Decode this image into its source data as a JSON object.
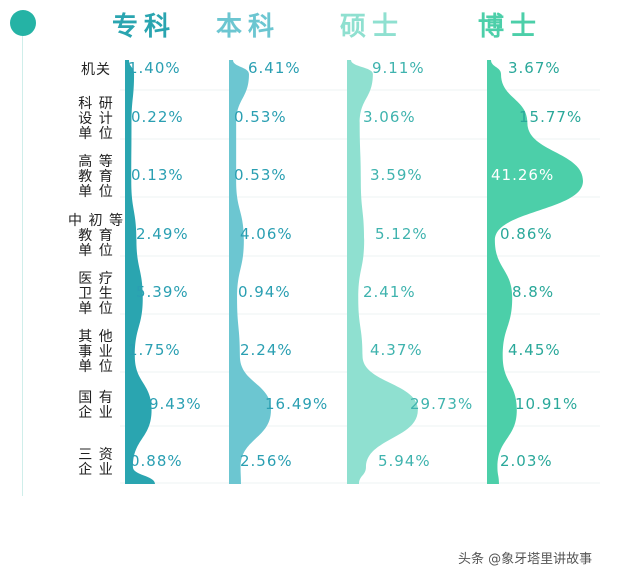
{
  "chart_data": {
    "type": "area",
    "title": "",
    "categories": [
      "机关",
      "科研设计单位",
      "高等教育单位",
      "中初等教育单位",
      "医疗卫生单位",
      "其他事业单位",
      "国有企业",
      "三资企业"
    ],
    "category_label_lines": [
      [
        "机关"
      ],
      [
        "科 研",
        "设 计",
        "单 位"
      ],
      [
        "高 等",
        "教 育",
        "单 位"
      ],
      [
        "中 初 等",
        "教 育",
        "单 位"
      ],
      [
        "医 疗",
        "卫 生",
        "单 位"
      ],
      [
        "其 他",
        "事 业",
        "单 位"
      ],
      [
        "国 有",
        "企 业"
      ],
      [
        "三 资",
        "企 业"
      ]
    ],
    "series": [
      {
        "name": "专科",
        "color": "#2aa5b0",
        "values": [
          1.4,
          0.22,
          0.13,
          2.49,
          5.39,
          1.75,
          9.43,
          0.88
        ],
        "labels": [
          "1.40%",
          "0.22%",
          "0.13%",
          "2.49%",
          "5.39%",
          "1.75%",
          "9.43%",
          "0.88%"
        ]
      },
      {
        "name": "本科",
        "color": "#6cc6d1",
        "values": [
          6.41,
          0.53,
          0.53,
          4.06,
          0.94,
          2.24,
          16.49,
          2.56
        ],
        "labels": [
          "6.41%",
          "0.53%",
          "0.53%",
          "4.06%",
          "0.94%",
          "2.24%",
          "16.49%",
          "2.56%"
        ]
      },
      {
        "name": "硕士",
        "color": "#8fe0d0",
        "values": [
          9.11,
          3.06,
          3.59,
          5.12,
          2.41,
          4.37,
          29.73,
          5.94
        ],
        "labels": [
          "9.11%",
          "3.06%",
          "3.59%",
          "5.12%",
          "2.41%",
          "4.37%",
          "29.73%",
          "5.94%"
        ]
      },
      {
        "name": "博士",
        "color": "#4ccfa9",
        "values": [
          3.67,
          15.77,
          41.26,
          0.86,
          8.8,
          4.45,
          10.91,
          2.03
        ],
        "labels": [
          "3.67%",
          "15.77%",
          "41.26%",
          "0.86%",
          "8.8%",
          "4.45%",
          "10.91%",
          "2.03%"
        ]
      }
    ],
    "grid": true,
    "legend": "none"
  },
  "watermark": "头条 @象牙塔里讲故事"
}
